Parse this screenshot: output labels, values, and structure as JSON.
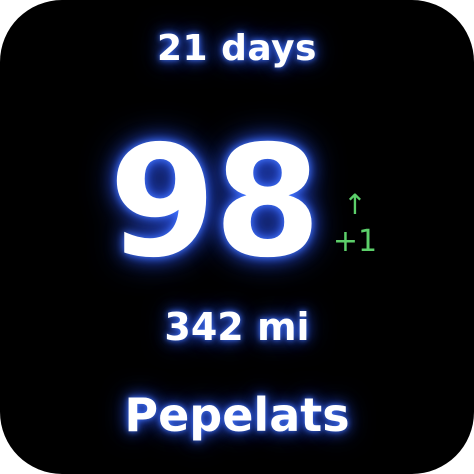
{
  "widget": {
    "duration": "21 days",
    "score": "98",
    "change": {
      "arrow": "↑",
      "value": "+1"
    },
    "distance": "342 mi",
    "name": "Pepelats"
  },
  "colors": {
    "background": "#000000",
    "text": "#ffffff",
    "glow": "#3c64ff",
    "change": "#5ccf6a"
  }
}
